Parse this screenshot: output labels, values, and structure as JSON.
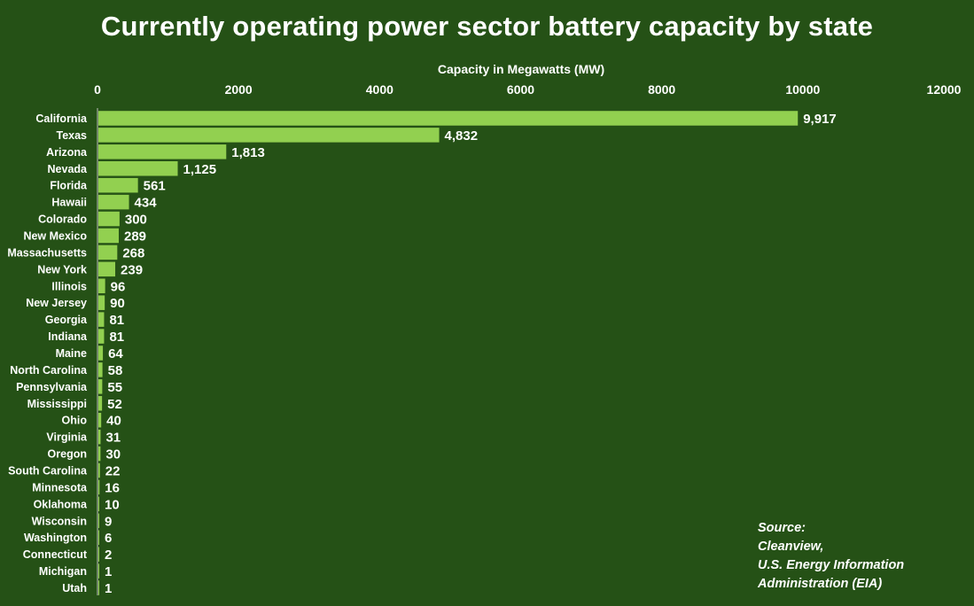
{
  "chart_data": {
    "type": "bar",
    "orientation": "horizontal",
    "title": "Currently operating power sector battery capacity by state",
    "xlabel": "Capacity in Megawatts (MW)",
    "ylabel": "",
    "xlim": [
      0,
      12000
    ],
    "xticks": [
      0,
      2000,
      4000,
      6000,
      8000,
      10000,
      12000
    ],
    "grid": false,
    "categories": [
      "California",
      "Texas",
      "Arizona",
      "Nevada",
      "Florida",
      "Hawaii",
      "Colorado",
      "New Mexico",
      "Massachusetts",
      "New York",
      "Illinois",
      "New Jersey",
      "Georgia",
      "Indiana",
      "Maine",
      "North Carolina",
      "Pennsylvania",
      "Mississippi",
      "Ohio",
      "Virginia",
      "Oregon",
      "South Carolina",
      "Minnesota",
      "Oklahoma",
      "Wisconsin",
      "Washington",
      "Connecticut",
      "Michigan",
      "Utah"
    ],
    "values": [
      9917,
      4832,
      1813,
      1125,
      561,
      434,
      300,
      289,
      268,
      239,
      96,
      90,
      81,
      81,
      64,
      58,
      55,
      52,
      40,
      31,
      30,
      22,
      16,
      10,
      9,
      6,
      2,
      1,
      1
    ],
    "value_labels": [
      "9,917",
      "4,832",
      "1,813",
      "1,125",
      "561",
      "434",
      "300",
      "289",
      "268",
      "239",
      "96",
      "90",
      "81",
      "81",
      "64",
      "58",
      "55",
      "52",
      "40",
      "31",
      "30",
      "22",
      "16",
      "10",
      "9",
      "6",
      "2",
      "1",
      "1"
    ],
    "bar_color": "#92d050"
  },
  "source": {
    "label": "Source:",
    "lines": [
      "Cleanview,",
      "U.S. Energy Information",
      "Administration (EIA)"
    ]
  }
}
